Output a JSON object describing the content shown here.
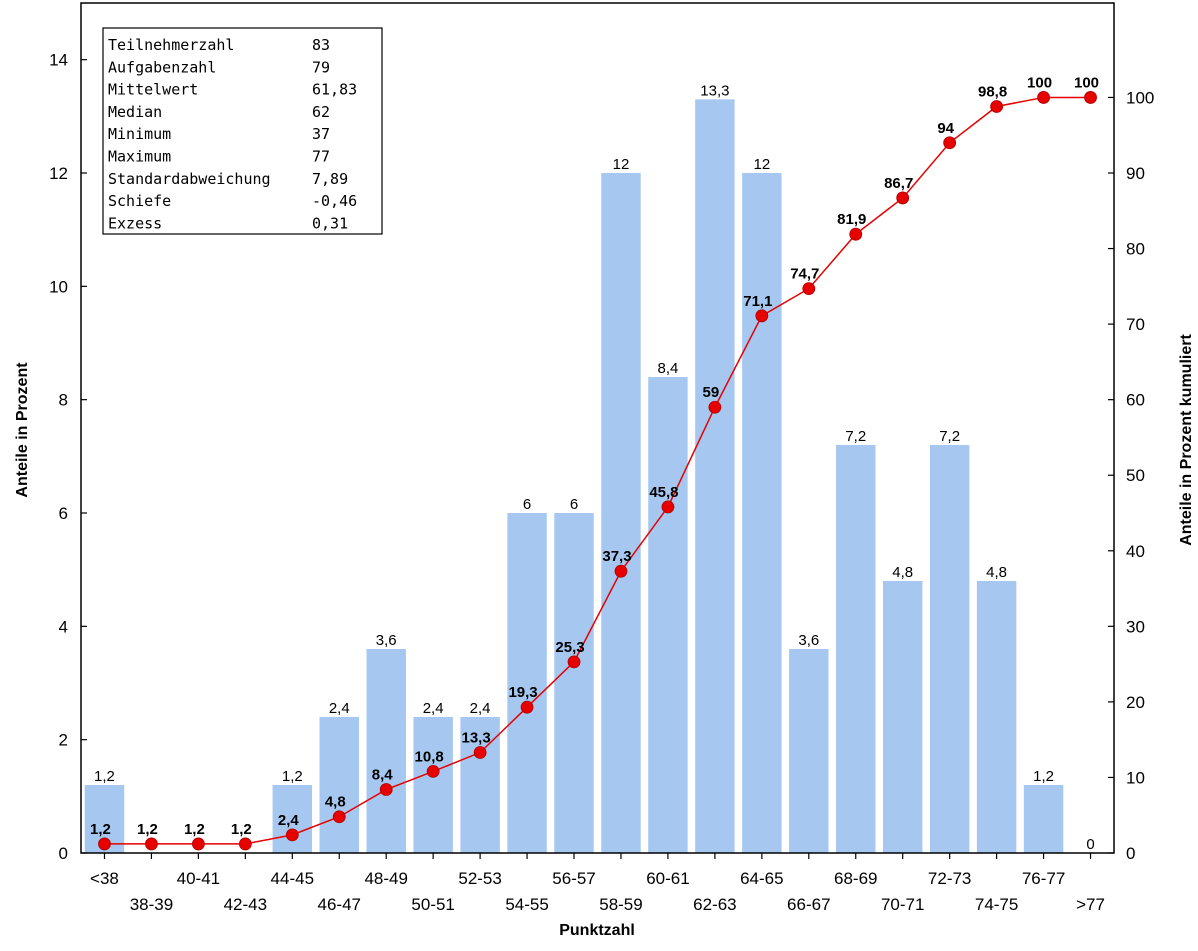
{
  "chart_data": {
    "type": "bar",
    "xlabel": "Punktzahl",
    "ylabel": "Anteile in Prozent",
    "ylabel_right": "Anteile in Prozent kumuliert",
    "ylim": [
      0,
      15
    ],
    "ylim_right": [
      0,
      112.5
    ],
    "yticks": [
      "0",
      "2",
      "4",
      "6",
      "8",
      "10",
      "12",
      "14"
    ],
    "yticks_right": [
      "0",
      "10",
      "20",
      "30",
      "40",
      "50",
      "60",
      "70",
      "80",
      "90",
      "100"
    ],
    "grid": false,
    "categories": [
      "<38",
      "38-39",
      "40-41",
      "42-43",
      "44-45",
      "46-47",
      "48-49",
      "50-51",
      "52-53",
      "54-55",
      "56-57",
      "58-59",
      "60-61",
      "62-63",
      "64-65",
      "66-67",
      "68-69",
      "70-71",
      "72-73",
      "74-75",
      "76-77",
      ">77"
    ],
    "series": [
      {
        "kind": "bar",
        "axis": "left",
        "color": "#a6c8f0",
        "values": [
          1.2,
          0,
          0,
          0,
          1.2,
          2.4,
          3.6,
          2.4,
          2.4,
          6,
          6,
          12,
          8.4,
          13.3,
          12,
          3.6,
          7.2,
          4.8,
          7.2,
          4.8,
          1.2,
          0
        ],
        "labels": [
          "1,2",
          "",
          "",
          "",
          "1,2",
          "2,4",
          "3,6",
          "2,4",
          "2,4",
          "6",
          "6",
          "12",
          "8,4",
          "13,3",
          "12",
          "3,6",
          "7,2",
          "4,8",
          "7,2",
          "4,8",
          "1,2",
          "0"
        ]
      },
      {
        "kind": "line",
        "axis": "right",
        "color": "#e60000",
        "values": [
          1.2,
          1.2,
          1.2,
          1.2,
          2.4,
          4.8,
          8.4,
          10.8,
          13.3,
          19.3,
          25.3,
          37.3,
          45.8,
          59,
          71.1,
          74.7,
          81.9,
          86.7,
          94,
          98.8,
          100,
          100
        ],
        "labels": [
          "1,2",
          "1,2",
          "1,2",
          "1,2",
          "2,4",
          "4,8",
          "8,4",
          "10,8",
          "13,3",
          "19,3",
          "25,3",
          "37,3",
          "45,8",
          "59",
          "71,1",
          "74,7",
          "81,9",
          "86,7",
          "94",
          "98,8",
          "100",
          "100"
        ]
      }
    ]
  },
  "stats": [
    {
      "label": "Teilnehmerzahl",
      "value": "83"
    },
    {
      "label": "Aufgabenzahl",
      "value": "79"
    },
    {
      "label": "Mittelwert",
      "value": "61,83"
    },
    {
      "label": "Median",
      "value": "62"
    },
    {
      "label": "Minimum",
      "value": "37"
    },
    {
      "label": "Maximum",
      "value": "77"
    },
    {
      "label": "Standardabweichung",
      "value": "7,89"
    },
    {
      "label": "Schiefe",
      "value": "-0,46"
    },
    {
      "label": "Exzess",
      "value": "0,31"
    }
  ]
}
